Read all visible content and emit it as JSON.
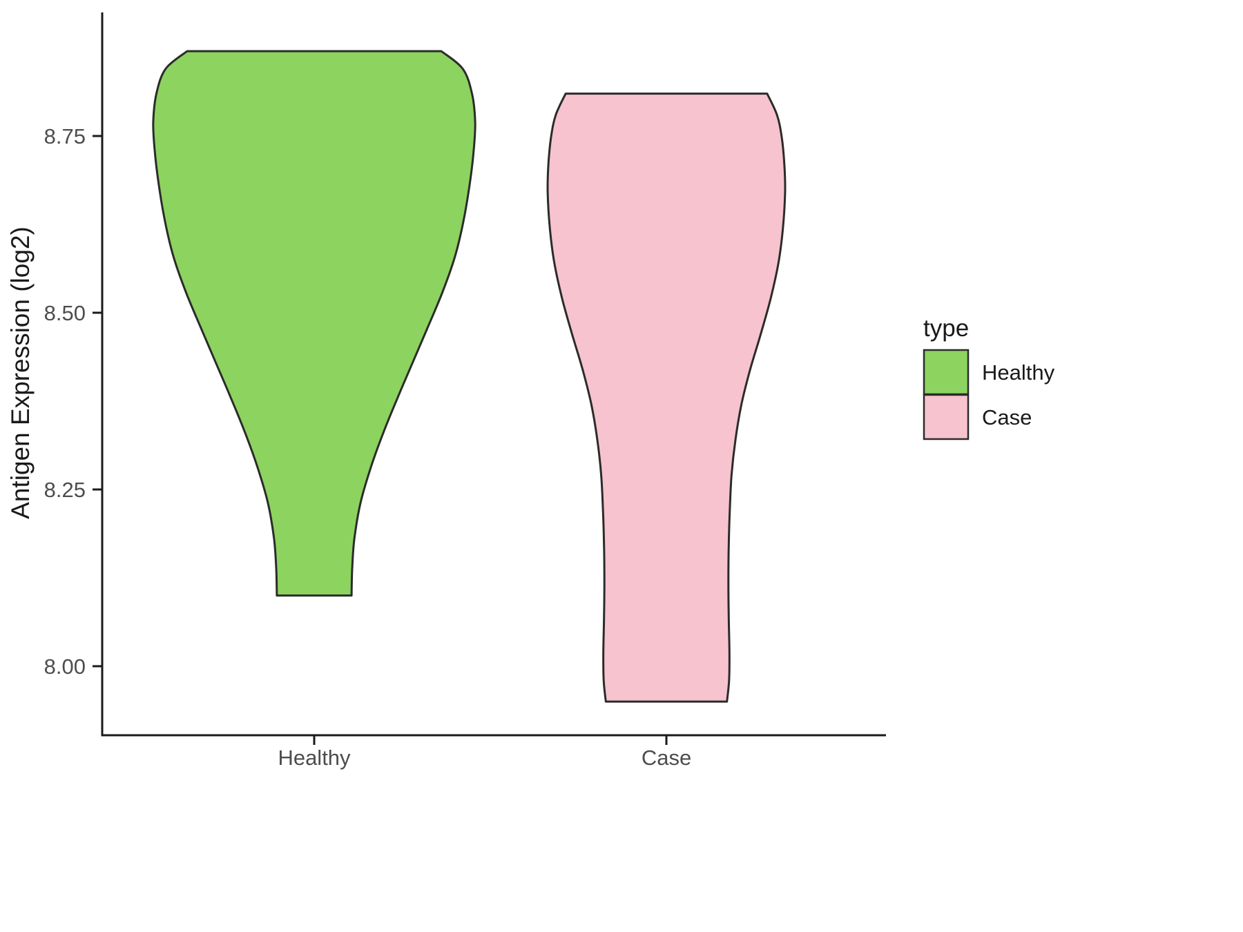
{
  "chart_data": {
    "type": "violin",
    "title": "",
    "xlabel": "",
    "ylabel": "Antigen Expression (log2)",
    "categories": [
      "Healthy",
      "Case"
    ],
    "yticks": [
      "8.00",
      "8.25",
      "8.50",
      "8.75"
    ],
    "ytick_values": [
      8.0,
      8.25,
      8.5,
      8.75
    ],
    "ylim": [
      7.88,
      8.92
    ],
    "grid": "off",
    "legend_position": "right",
    "legend": {
      "title": "type",
      "entries": [
        {
          "label": "Healthy",
          "color": "#8DD35F"
        },
        {
          "label": "Case",
          "color": "#F6C3CF"
        }
      ]
    },
    "series": [
      {
        "name": "Healthy",
        "color": "#8DD35F",
        "min": 8.1,
        "max": 8.87,
        "profile": [
          [
            8.87,
            0.361
          ],
          [
            8.845,
            0.422
          ],
          [
            8.81,
            0.448
          ],
          [
            8.77,
            0.457
          ],
          [
            8.73,
            0.453
          ],
          [
            8.68,
            0.441
          ],
          [
            8.63,
            0.424
          ],
          [
            8.58,
            0.4
          ],
          [
            8.53,
            0.365
          ],
          [
            8.48,
            0.323
          ],
          [
            8.43,
            0.28
          ],
          [
            8.38,
            0.237
          ],
          [
            8.33,
            0.196
          ],
          [
            8.28,
            0.16
          ],
          [
            8.23,
            0.131
          ],
          [
            8.18,
            0.114
          ],
          [
            8.14,
            0.108
          ],
          [
            8.1,
            0.106
          ]
        ]
      },
      {
        "name": "Case",
        "color": "#F6C3CF",
        "min": 7.95,
        "max": 8.81,
        "profile": [
          [
            8.81,
            0.286
          ],
          [
            8.78,
            0.314
          ],
          [
            8.75,
            0.327
          ],
          [
            8.71,
            0.335
          ],
          [
            8.67,
            0.337
          ],
          [
            8.62,
            0.331
          ],
          [
            8.57,
            0.318
          ],
          [
            8.52,
            0.296
          ],
          [
            8.47,
            0.268
          ],
          [
            8.42,
            0.238
          ],
          [
            8.37,
            0.213
          ],
          [
            8.32,
            0.196
          ],
          [
            8.27,
            0.185
          ],
          [
            8.22,
            0.18
          ],
          [
            8.17,
            0.177
          ],
          [
            8.12,
            0.176
          ],
          [
            8.07,
            0.177
          ],
          [
            8.02,
            0.179
          ],
          [
            7.98,
            0.178
          ],
          [
            7.95,
            0.172
          ]
        ]
      }
    ]
  }
}
